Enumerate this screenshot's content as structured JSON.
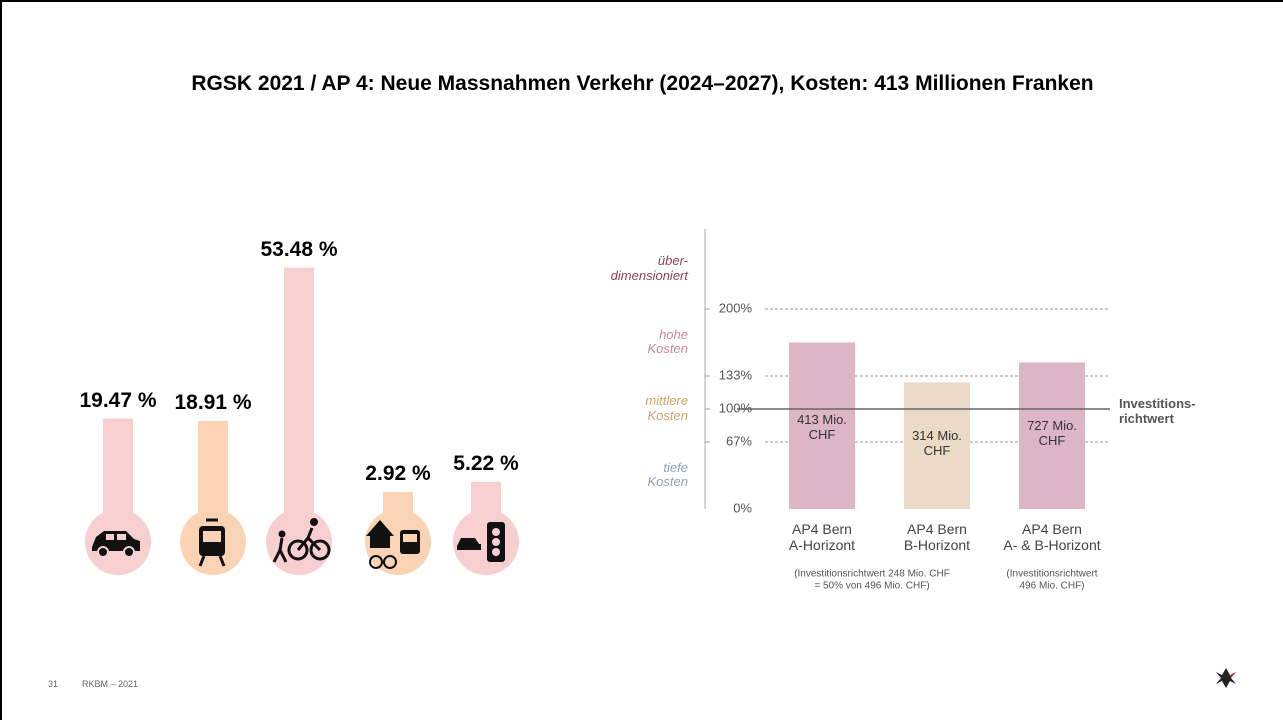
{
  "title": "RGSK 2021 / AP 4: Neue Massnahmen Verkehr (2024–2027), Kosten: 413 Millionen Franken",
  "footer": {
    "page": "31",
    "text": "RKBM – 2021"
  },
  "chart_data": [
    {
      "type": "bar",
      "categories": [
        null,
        null,
        null,
        null,
        null
      ],
      "values": [
        19.47,
        18.91,
        53.48,
        2.92,
        5.22
      ],
      "value_labels": [
        "19.47 %",
        "18.91 %",
        "53.48 %",
        "2.92 %",
        "5.22 %"
      ],
      "colors": [
        "#f8cfd0",
        "#f9d3b3",
        "#f8cfd0",
        "#f9d3b3",
        "#f8cfd0"
      ]
    },
    {
      "type": "bar",
      "categories": [
        "AP4 Bern\nA-Horizont",
        "AP4 Bern\nB-Horizont",
        "AP4 Bern\nA- & B-Horizont"
      ],
      "values": [
        166.5,
        126.6,
        146.6
      ],
      "bar_labels": [
        "413 Mio.\nCHF",
        "314 Mio.\nCHF",
        "727 Mio.\nCHF"
      ],
      "colors": [
        "#dcb6c5",
        "#ebdac6",
        "#dcb6c5"
      ],
      "notes": [
        "(Investitionsrichtwert 248 Mio. CHF\n= 50% von 496 Mio. CHF)",
        "(Investitionsrichtwert\n496 Mio. CHF)"
      ],
      "ylim": [
        0,
        280
      ],
      "yticks": [
        {
          "value": 0,
          "label": "0%"
        },
        {
          "value": 67,
          "label": "67%"
        },
        {
          "value": 100,
          "label": "100%"
        },
        {
          "value": 133,
          "label": "133%"
        },
        {
          "value": 200,
          "label": "200%"
        }
      ],
      "zones": [
        {
          "label": "tiefe\nKosten",
          "color": "#8ea2b8"
        },
        {
          "label": "mittlere\nKosten",
          "color": "#c9a66b"
        },
        {
          "label": "hohe\nKosten",
          "color": "#c98a9c"
        },
        {
          "label": "über-\ndimensioniert",
          "color": "#8c3f5a"
        }
      ],
      "reference_line": {
        "value": 100,
        "label": "Investitions-\nrichtwert"
      }
    }
  ]
}
